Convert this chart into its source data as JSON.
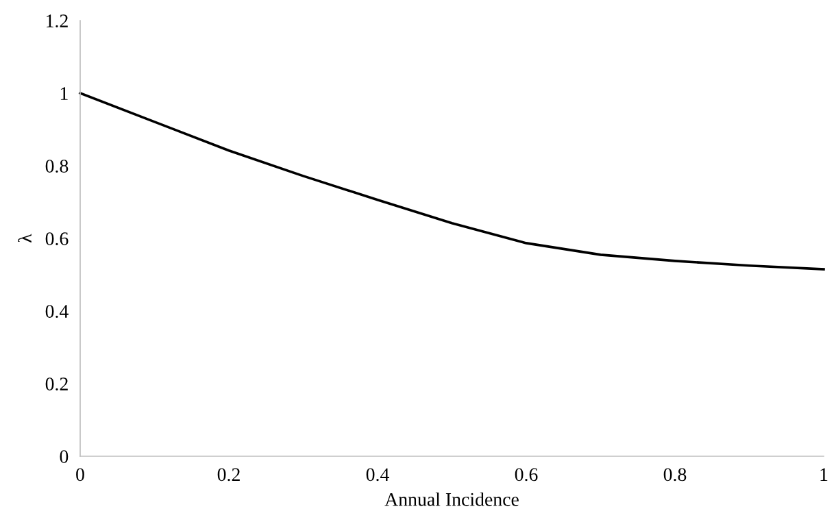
{
  "chart_data": {
    "type": "line",
    "xlabel": "Annual Incidence",
    "ylabel": "λ",
    "x": [
      0,
      0.1,
      0.2,
      0.3,
      0.4,
      0.5,
      0.6,
      0.7,
      0.8,
      0.9,
      1
    ],
    "series": [
      {
        "color": "#000000",
        "values": [
          1.0,
          0.921,
          0.842,
          0.772,
          0.706,
          0.642,
          0.587,
          0.555,
          0.538,
          0.525,
          0.515
        ]
      }
    ],
    "xlim": [
      0,
      1
    ],
    "ylim": [
      0,
      1.2
    ],
    "xticks": [
      0,
      0.2,
      0.4,
      0.6,
      0.8,
      1
    ],
    "yticks": [
      0,
      0.2,
      0.4,
      0.6,
      0.8,
      1,
      1.2
    ],
    "grid": false,
    "legend": false,
    "marker": "none",
    "line_style": "solid"
  }
}
